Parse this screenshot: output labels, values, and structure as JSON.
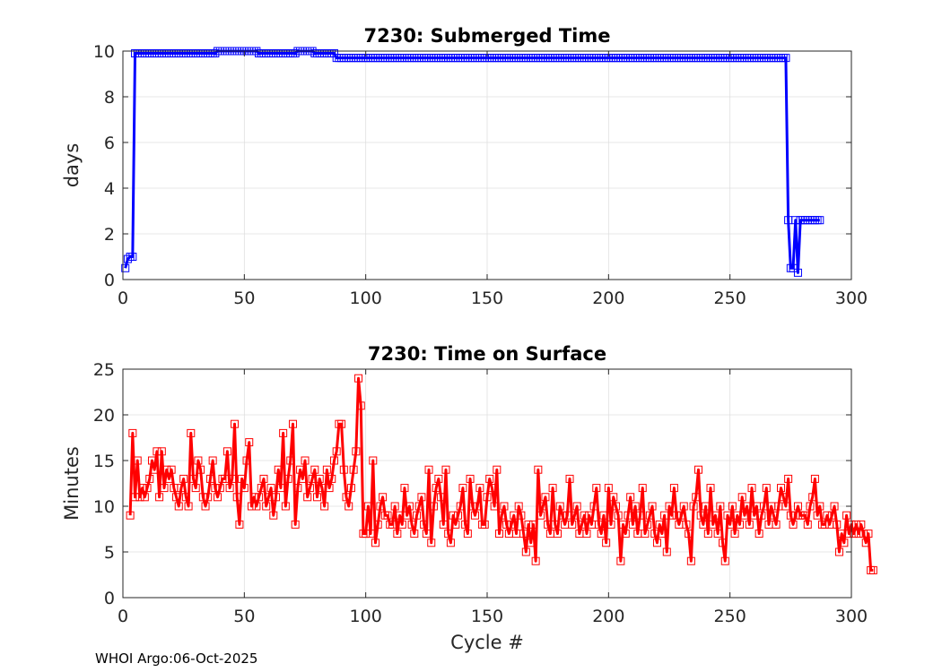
{
  "footer": "WHOI Argo:06-Oct-2025",
  "chart_data": [
    {
      "type": "line",
      "title": "7230: Submerged Time",
      "xlabel": "",
      "ylabel": "days",
      "xlim": [
        0,
        300
      ],
      "ylim": [
        0,
        10
      ],
      "xticks": [
        0,
        50,
        100,
        150,
        200,
        250,
        300
      ],
      "yticks": [
        0,
        2,
        4,
        6,
        8,
        10
      ],
      "grid": true,
      "marker": "square",
      "color": "#0000ff",
      "segments": [
        {
          "from": 1,
          "to": 1,
          "value": 0.5
        },
        {
          "from": 2,
          "to": 2,
          "value": 0.9
        },
        {
          "from": 3,
          "to": 4,
          "value": 1.0
        },
        {
          "from": 5,
          "to": 38,
          "value": 9.9
        },
        {
          "from": 39,
          "to": 55,
          "value": 10.0
        },
        {
          "from": 56,
          "to": 71,
          "value": 9.9
        },
        {
          "from": 72,
          "to": 78,
          "value": 10.0
        },
        {
          "from": 79,
          "to": 87,
          "value": 9.9
        },
        {
          "from": 88,
          "to": 273,
          "value": 9.7
        },
        {
          "from": 274,
          "to": 274,
          "value": 2.6
        },
        {
          "from": 275,
          "to": 276,
          "value": 0.5
        },
        {
          "from": 277,
          "to": 277,
          "value": 2.6
        },
        {
          "from": 278,
          "to": 278,
          "value": 0.3
        },
        {
          "from": 279,
          "to": 287,
          "value": 2.6
        }
      ]
    },
    {
      "type": "line",
      "title": "7230: Time on Surface",
      "xlabel": "Cycle #",
      "ylabel": "Minutes",
      "xlim": [
        0,
        300
      ],
      "ylim": [
        0,
        25
      ],
      "xticks": [
        0,
        50,
        100,
        150,
        200,
        250,
        300
      ],
      "yticks": [
        0,
        5,
        10,
        15,
        20,
        25
      ],
      "grid": true,
      "marker": "square",
      "color": "#ff0000",
      "x_start": 3,
      "values": [
        9,
        18,
        11,
        15,
        11,
        12,
        11,
        12,
        13,
        15,
        14,
        16,
        11,
        16,
        12,
        14,
        13,
        14,
        12,
        11,
        10,
        12,
        13,
        11,
        10,
        18,
        13,
        12,
        15,
        14,
        11,
        10,
        11,
        13,
        15,
        12,
        11,
        12,
        13,
        13,
        16,
        12,
        13,
        19,
        11,
        8,
        13,
        12,
        15,
        17,
        10,
        11,
        10,
        11,
        12,
        13,
        10,
        11,
        12,
        9,
        11,
        14,
        12,
        18,
        10,
        13,
        15,
        19,
        8,
        12,
        14,
        13,
        15,
        11,
        12,
        13,
        14,
        11,
        13,
        12,
        10,
        14,
        12,
        13,
        15,
        16,
        19,
        19,
        14,
        11,
        10,
        12,
        14,
        16,
        24,
        21,
        7,
        7,
        10,
        7,
        15,
        6,
        8,
        10,
        11,
        9,
        9,
        8,
        8,
        10,
        7,
        9,
        8,
        12,
        9,
        10,
        8,
        7,
        9,
        10,
        11,
        8,
        7,
        14,
        6,
        10,
        12,
        13,
        11,
        8,
        14,
        7,
        6,
        9,
        8,
        9,
        10,
        12,
        8,
        7,
        13,
        10,
        9,
        10,
        12,
        8,
        8,
        11,
        13,
        12,
        10,
        14,
        7,
        9,
        10,
        8,
        7,
        8,
        9,
        7,
        10,
        9,
        7,
        5,
        8,
        6,
        8,
        4,
        14,
        9,
        10,
        11,
        8,
        7,
        12,
        8,
        7,
        10,
        9,
        8,
        9,
        13,
        8,
        9,
        10,
        7,
        8,
        9,
        7,
        9,
        8,
        10,
        12,
        8,
        7,
        9,
        6,
        12,
        8,
        11,
        10,
        9,
        4,
        8,
        7,
        9,
        11,
        8,
        10,
        7,
        9,
        12,
        7,
        8,
        9,
        10,
        7,
        6,
        8,
        7,
        9,
        5,
        10,
        9,
        12,
        9,
        8,
        9,
        10,
        8,
        7,
        4,
        10,
        11,
        14,
        9,
        8,
        10,
        7,
        12,
        8,
        9,
        7,
        10,
        6,
        4,
        9,
        8,
        10,
        7,
        9,
        8,
        11,
        9,
        10,
        8,
        12,
        9,
        10,
        7,
        9,
        10,
        12,
        8,
        10,
        9,
        8,
        10,
        12,
        11,
        10,
        13,
        9,
        8,
        9,
        10,
        9,
        9,
        9,
        8,
        10,
        11,
        13,
        9,
        10,
        8,
        8,
        9,
        8,
        9,
        10,
        8,
        5,
        7,
        6,
        9,
        7,
        8,
        7,
        8,
        7,
        8,
        7,
        6,
        7,
        3,
        3
      ]
    }
  ]
}
